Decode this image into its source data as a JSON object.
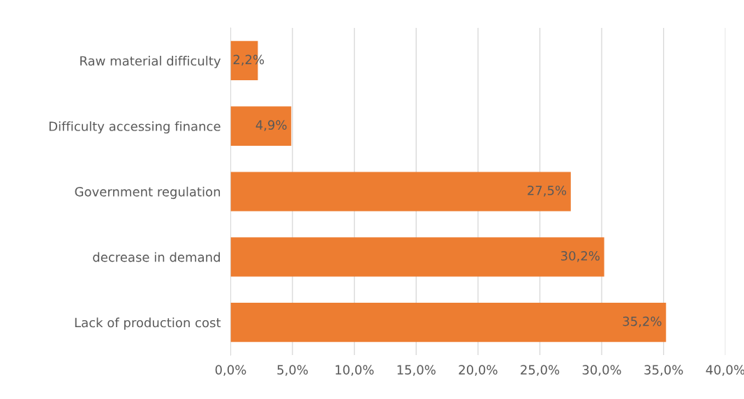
{
  "chart_data": {
    "type": "bar",
    "orientation": "horizontal",
    "categories": [
      "Raw material difficulty",
      "Difficulty accessing finance",
      "Government regulation",
      "decrease in demand",
      "Lack of production cost"
    ],
    "values": [
      2.2,
      4.9,
      27.5,
      30.2,
      35.2
    ],
    "value_labels": [
      "2,2%",
      "4,9%",
      "27,5%",
      "30,2%",
      "35,2%"
    ],
    "color": "#ed7d31",
    "xlim": [
      0,
      40
    ],
    "xticks": [
      {
        "value": 0,
        "label": "0,0%"
      },
      {
        "value": 5,
        "label": "5,0%"
      },
      {
        "value": 10,
        "label": "10,0%"
      },
      {
        "value": 15,
        "label": "15,0%"
      },
      {
        "value": 20,
        "label": "20,0%"
      },
      {
        "value": 25,
        "label": "25,0%"
      },
      {
        "value": 30,
        "label": "30,0%"
      },
      {
        "value": 35,
        "label": "35,0%"
      },
      {
        "value": 40,
        "label": "40,0%"
      }
    ],
    "grid": "x"
  }
}
